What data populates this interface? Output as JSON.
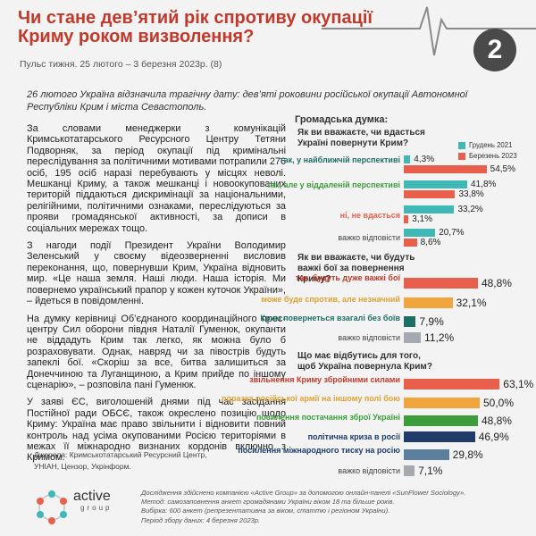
{
  "header": {
    "title": "Чи стане дев’ятий рік спротиву окупації Криму роком визволення?",
    "issue_number": "2",
    "subtitle": "Пульс тижня. 25 лютого – 3 березня 2023р. (8)"
  },
  "intro": "26 лютого Україна відзначила трагічну дату: дев’яті роковини російської окупації Автономної Республіки Крим і міста Севастополь.",
  "body": [
    "За словами менеджерки з комунікацій Кримськотатарського Ресурсного Центру Тетяни Подворняк, за період окупації під кримінальні переслідування за політичними мотивами потрапили 276 осіб, 195 осіб наразі перебувають у місцях неволі. Мешканці Криму, а також мешканці і новоокупованих територій піддаються дискримінації за національними, релігійними, політичними ознаками, переслідуються за прояви громадянської активності, за дописи в соціальних мережах тощо.",
    "З нагоди події Президент України Володимир Зеленський у своєму відеозверненні висловив переконання, що, повернувши Крим, Україна відновить мир. «Це наша земля. Наші люди. Наша історія. Ми повернемо український прапор у кожен куточок України», – йдеться в повідомленні.",
    "На думку керівниці Об’єднаного координаційного прес-центру Сил оборони півдня Наталії Гуменюк, окупанти не віддадуть Крим так легко, як можна було б розраховувати. Однак, навряд чи за півострів будуть запеклі бої. «Скоріш за все, битва залишиться за Донеччиною та Луганщиною, а Крим прийде по іншому сценарію», – розповіла пані Гуменюк.",
    "У заяві ЄС, виголошеній днями під час засідання Постійної ради ОБСЄ, також окреслено позицію щодо Криму: Україна має право звільнити і відновити повний контроль над усіма окупованими Росією територіями в межах її міжнародно визнаних кордонів включно з Кримом."
  ],
  "sources": "Джерела: Кримськотатарський Ресурсний Центр, УНІАН, Цензор, Укрінформ.",
  "logo": {
    "name": "active",
    "sub": "group"
  },
  "methodology": [
    "Дослідження здійснено компанією «Active Group» за допомогою онлайн-панелі «SunFlower Sociology».",
    "Метод: самозаповнення анкет громадянами України віком 18 та більше років.",
    "Вибірка: 600 анкет (репрезентативна за віком, статтю і регіоном України).",
    "Період збору даних: 4 березня 2023р."
  ],
  "opinion_title": "Громадська думка:",
  "colors": {
    "teal": "#3fb8b6",
    "red": "#e8604c",
    "orange": "#f0a63c",
    "dark_teal": "#1e6e68",
    "green": "#3c9d3a",
    "navy": "#1f3c6b",
    "blue_gray": "#5c7f9e",
    "gray": "#a6aab0"
  },
  "chart_data": [
    {
      "type": "bar",
      "title": "Як ви вважаєте, чи вдасться Україні повернути Крим?",
      "categories": [
        "так, у найближчій перспективі",
        "так, але у віддаленій перспективі",
        "ні, не вдасться",
        "важко відповісти"
      ],
      "series": [
        {
          "name": "Грудень 2021",
          "values": [
            4.3,
            41.8,
            33.2,
            20.7
          ],
          "labels": [
            "4,3%",
            "41,8%",
            "33,2%",
            "20,7%"
          ]
        },
        {
          "name": "Березень 2023",
          "values": [
            54.5,
            33.8,
            3.1,
            8.6
          ],
          "labels": [
            "54,5%",
            "33,8%",
            "3,1%",
            "8,6%"
          ]
        }
      ]
    },
    {
      "type": "bar",
      "title": "Як ви вважаєте, чи будуть важкі бої за повернення Криму?",
      "categories": [
        "так, будуть дуже важкі бої",
        "може буде спротив, але незначний",
        "Крим повернеться взагалі без боїв",
        "важко відповісти"
      ],
      "values": [
        48.8,
        32.1,
        7.9,
        11.2
      ],
      "labels": [
        "48,8%",
        "32,1%",
        "7,9%",
        "11,2%"
      ]
    },
    {
      "type": "bar",
      "title": "Що має відбутись для того, щоб Україна повернула Крим?",
      "categories": [
        "звільнення Криму збройними силами",
        "поразка російської армії на іншому полі бою",
        "посилення постачання зброї Україні",
        "політична криза в росії",
        "посилення міжнародного тиску на росію",
        "важко відповісти"
      ],
      "values": [
        63.1,
        50.0,
        48.8,
        46.9,
        29.8,
        7.1
      ],
      "labels": [
        "63,1%",
        "50,0%",
        "48,8%",
        "46,9%",
        "29,8%",
        "7,1%"
      ]
    }
  ]
}
